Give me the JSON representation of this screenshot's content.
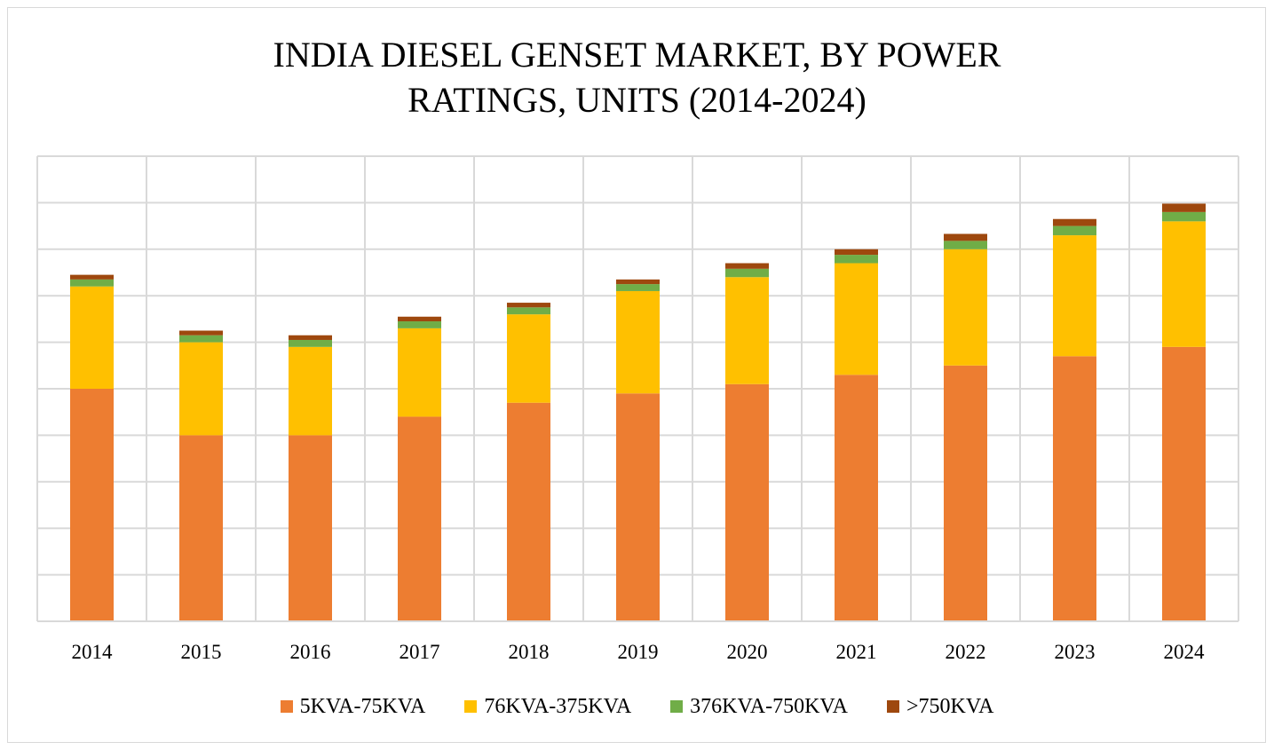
{
  "chart_data": {
    "type": "bar",
    "stacked": true,
    "title_lines": [
      "INDIA DIESEL GENSET MARKET, BY POWER",
      "RATINGS, UNITS (2014-2024)"
    ],
    "xlabel": "",
    "ylabel": "",
    "ylim": [
      0,
      10
    ],
    "y_gridlines": 10,
    "y_tick_labels_shown": false,
    "grid": true,
    "legend_position": "bottom",
    "categories": [
      "2014",
      "2015",
      "2016",
      "2017",
      "2018",
      "2019",
      "2020",
      "2021",
      "2022",
      "2023",
      "2024"
    ],
    "series": [
      {
        "name": "5KVA-75KVA",
        "color": "#ED7D31",
        "values": [
          5.0,
          4.0,
          4.0,
          4.4,
          4.7,
          4.9,
          5.1,
          5.3,
          5.5,
          5.7,
          5.9
        ]
      },
      {
        "name": "76KVA-375KVA",
        "color": "#FFC000",
        "values": [
          2.2,
          2.0,
          1.9,
          1.9,
          1.9,
          2.2,
          2.3,
          2.4,
          2.5,
          2.6,
          2.7
        ]
      },
      {
        "name": "376KVA-750KVA",
        "color": "#70AD47",
        "values": [
          0.15,
          0.15,
          0.15,
          0.15,
          0.15,
          0.15,
          0.18,
          0.18,
          0.18,
          0.2,
          0.2
        ]
      },
      {
        "name": ">750KVA",
        "color": "#9E480E",
        "values": [
          0.1,
          0.1,
          0.1,
          0.1,
          0.1,
          0.1,
          0.12,
          0.12,
          0.15,
          0.15,
          0.18
        ]
      }
    ]
  }
}
